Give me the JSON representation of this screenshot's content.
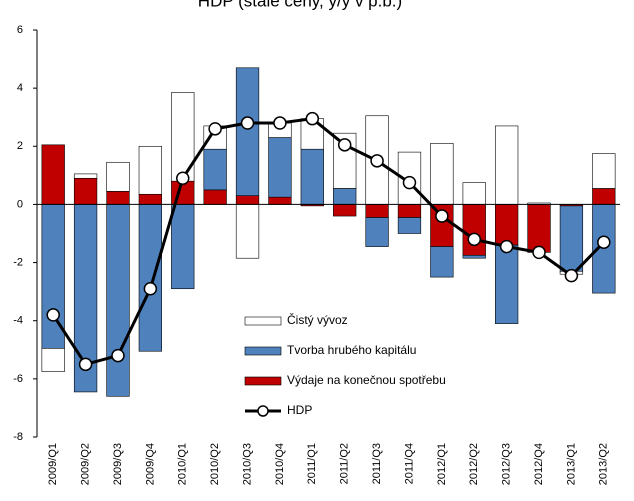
{
  "chart_data": {
    "type": "bar",
    "stacked": true,
    "title": "HDP  (stálé ceny, y/y v p.b.)",
    "categories": [
      "2009/Q1",
      "2009/Q2",
      "2009/Q3",
      "2009/Q4",
      "2010/Q1",
      "2010/Q2",
      "2010/Q3",
      "2010/Q4",
      "2011/Q1",
      "2011/Q2",
      "2011/Q3",
      "2011/Q4",
      "2012/Q1",
      "2012/Q2",
      "2012/Q3",
      "2012/Q4",
      "2013/Q1",
      "2013/Q2"
    ],
    "series": [
      {
        "name": "Výdaje na konečnou spotřebu",
        "type": "bar",
        "color": "#c00000",
        "values": [
          2.05,
          0.9,
          0.45,
          0.35,
          0.8,
          0.5,
          0.3,
          0.25,
          -0.05,
          -0.4,
          -0.45,
          -0.45,
          -1.45,
          -1.75,
          -1.4,
          -1.65,
          -0.05,
          0.55
        ]
      },
      {
        "name": "Tvorba hrubého kapitálu",
        "type": "bar",
        "color": "#4f81bd",
        "values": [
          -4.95,
          -6.45,
          -6.6,
          -5.05,
          -2.9,
          1.4,
          4.4,
          2.05,
          1.9,
          0.55,
          -1.0,
          -0.55,
          -1.05,
          -0.1,
          -2.7,
          0,
          -2.25,
          -3.05
        ]
      },
      {
        "name": "Čistý vývoz",
        "type": "bar",
        "color": "#ffffff",
        "values": [
          -0.8,
          0.15,
          1.0,
          1.65,
          3.05,
          0.8,
          -1.85,
          0.5,
          1.05,
          1.9,
          3.05,
          1.8,
          2.1,
          0.75,
          2.7,
          0.05,
          -0.1,
          1.2
        ]
      },
      {
        "name": "HDP",
        "type": "line",
        "color": "#000000",
        "values": [
          -3.8,
          -5.5,
          -5.2,
          -2.9,
          0.9,
          2.6,
          2.8,
          2.8,
          2.95,
          2.05,
          1.5,
          0.75,
          -0.4,
          -1.2,
          -1.45,
          -1.65,
          -2.45,
          -1.3
        ]
      }
    ],
    "ylim": [
      -8,
      6
    ],
    "yticks": [
      -8,
      -6,
      -4,
      -2,
      0,
      2,
      4,
      6
    ],
    "grid": false
  }
}
